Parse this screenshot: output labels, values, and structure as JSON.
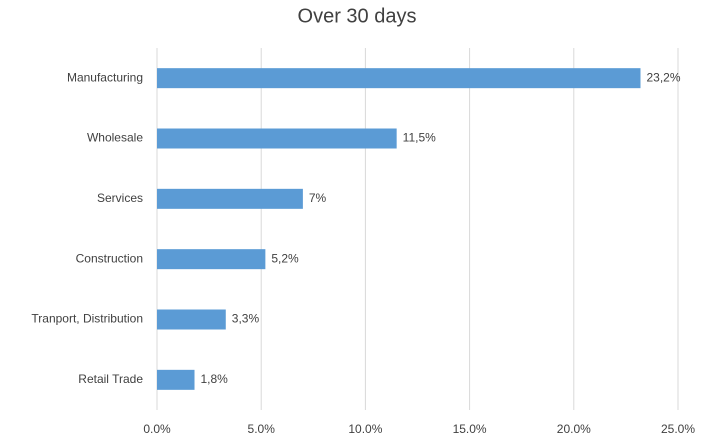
{
  "chart_data": {
    "type": "bar",
    "title": "Over 30 days",
    "categories": [
      "Manufacturing",
      "Wholesale",
      "Services",
      "Construction",
      "Tranport, Distribution",
      "Retail Trade"
    ],
    "values": [
      23.2,
      11.5,
      7,
      5.2,
      3.3,
      1.8
    ],
    "value_labels": [
      "23,2%",
      "11,5%",
      "7%",
      "5,2%",
      "3,3%",
      "1,8%"
    ],
    "color": "#5b9bd5",
    "xlim": [
      0,
      25
    ],
    "xticks": [
      {
        "value": 0,
        "label": "0.0%"
      },
      {
        "value": 5,
        "label": "5.0%"
      },
      {
        "value": 10,
        "label": "10.0%"
      },
      {
        "value": 15,
        "label": "15.0%"
      },
      {
        "value": 20,
        "label": "20.0%"
      },
      {
        "value": 25,
        "label": "25.0%"
      }
    ],
    "grid": true
  }
}
